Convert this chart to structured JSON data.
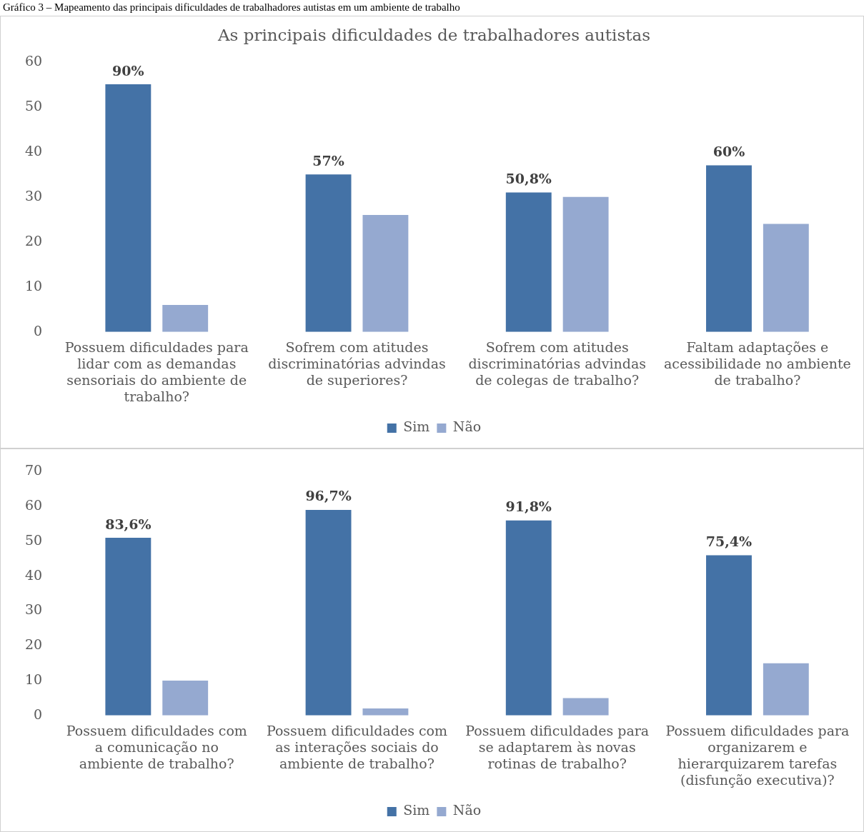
{
  "chart_data": [
    {
      "type": "bar",
      "title": "As principais dificuldades de trabalhadores autistas",
      "annotations": [
        "Gráfico 3 – Mapeamento das principais dificuldades de trabalhadores autistas em um ambiente de trabalho",
        "90%",
        "57%",
        "50,8%",
        "60%"
      ],
      "categories": [
        "Possuem dificuldades para lidar com as demandas sensoriais do ambiente de trabalho?",
        "Sofrem com atitudes discriminatórias advindas de superiores?",
        "Sofrem com atitudes discriminatórias advindas de colegas de trabalho?",
        "Faltam adaptações e acessibilidade no ambiente de trabalho?"
      ],
      "series": [
        {
          "name": "Sim",
          "color": "#4472a6",
          "values": [
            55,
            35,
            31,
            37
          ]
        },
        {
          "name": "Não",
          "color": "#95a9d0",
          "values": [
            6,
            26,
            30,
            24
          ]
        }
      ],
      "ylim": [
        0,
        60
      ],
      "yticks": [
        0,
        10,
        20,
        30,
        40,
        50,
        60
      ],
      "grid": false,
      "legend": "bottom"
    },
    {
      "type": "bar",
      "annotations": [
        "83,6%",
        "96,7%",
        "91,8%",
        "75,4%"
      ],
      "categories": [
        "Possuem dificuldades com a comunicação no ambiente de trabalho?",
        "Possuem dificuldades com as interações sociais do ambiente de trabalho?",
        "Possuem dificuldades para se adaptarem às novas rotinas de trabalho?",
        "Possuem dificuldades para organizarem e hierarquizarem tarefas (disfunção executiva)?"
      ],
      "series": [
        {
          "name": "Sim",
          "color": "#4472a6",
          "values": [
            51,
            59,
            56,
            46
          ]
        },
        {
          "name": "Não",
          "color": "#95a9d0",
          "values": [
            10,
            2,
            5,
            15
          ]
        }
      ],
      "ylim": [
        0,
        70
      ],
      "yticks": [
        0,
        10,
        20,
        30,
        40,
        50,
        60,
        70
      ],
      "grid": false,
      "legend": "bottom"
    }
  ]
}
